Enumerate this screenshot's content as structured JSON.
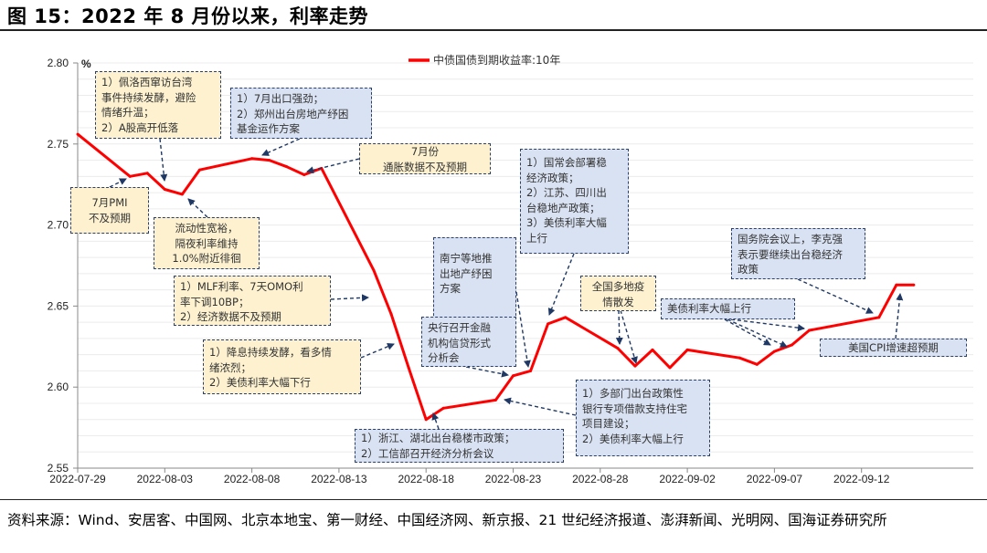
{
  "title": "图 15：2022 年 8 月份以来，利率走势",
  "source": "资料来源：Wind、安居客、中国网、北京本地宝、第一财经、中国经济网、新京报、21 世纪经济报道、澎湃新闻、光明网、国海证券研究所",
  "colors": {
    "line": "#ff0000",
    "annotation_yellow": "#fdf1cf",
    "annotation_blue": "#d9e2f2",
    "arrow": "#1f3864"
  },
  "chart_data": {
    "type": "line",
    "title": "",
    "ylabel": "%",
    "xlabel": "",
    "ylim": [
      2.55,
      2.8
    ],
    "yticks": [
      "2.55",
      "2.60",
      "2.65",
      "2.70",
      "2.75",
      "2.80"
    ],
    "xticks": [
      "2022-07-29",
      "2022-08-03",
      "2022-08-08",
      "2022-08-13",
      "2022-08-18",
      "2022-08-23",
      "2022-08-28",
      "2022-09-02",
      "2022-09-07",
      "2022-09-12"
    ],
    "grid": true,
    "legend_position": "top-center",
    "series": [
      {
        "name": "中债国债到期收益率:10年",
        "x": [
          "2022-07-29",
          "2022-08-01",
          "2022-08-02",
          "2022-08-03",
          "2022-08-04",
          "2022-08-05",
          "2022-08-08",
          "2022-08-09",
          "2022-08-10",
          "2022-08-11",
          "2022-08-12",
          "2022-08-15",
          "2022-08-16",
          "2022-08-17",
          "2022-08-18",
          "2022-08-19",
          "2022-08-22",
          "2022-08-23",
          "2022-08-24",
          "2022-08-25",
          "2022-08-26",
          "2022-08-29",
          "2022-08-30",
          "2022-08-31",
          "2022-09-01",
          "2022-09-02",
          "2022-09-05",
          "2022-09-06",
          "2022-09-07",
          "2022-09-08",
          "2022-09-09",
          "2022-09-13",
          "2022-09-14",
          "2022-09-15"
        ],
        "values": [
          2.756,
          2.73,
          2.732,
          2.722,
          2.719,
          2.734,
          2.741,
          2.74,
          2.736,
          2.731,
          2.735,
          2.672,
          2.645,
          2.612,
          2.58,
          2.587,
          2.592,
          2.607,
          2.61,
          2.639,
          2.643,
          2.624,
          2.613,
          2.623,
          2.612,
          2.623,
          2.618,
          2.614,
          2.622,
          2.626,
          2.635,
          2.643,
          2.663,
          2.663
        ]
      }
    ],
    "annotations": [
      {
        "text": "1）佩洛西窜访台湾\n事件持续发酵，避险\n情绪升温；\n2）A股高开低落",
        "style": "yellow"
      },
      {
        "text": "7月PMI\n不及预期",
        "style": "yellow"
      },
      {
        "text": "流动性宽裕，\n隔夜利率维持\n1.0%附近徘徊",
        "style": "yellow"
      },
      {
        "text": "1）7月出口强劲；\n2）郑州出台房地产纾困\n基金运作方案",
        "style": "blue"
      },
      {
        "text": "7月份\n通胀数据不及预期",
        "style": "yellow"
      },
      {
        "text": "1）MLF利率、7天OMO利\n率下调10BP；\n2）经济数据不及预期",
        "style": "yellow"
      },
      {
        "text": "1）降息持续发酵，看多情\n绪浓烈；\n2）美债利率大幅下行",
        "style": "yellow"
      },
      {
        "text": "南宁等地推\n出地产纾困\n方案",
        "style": "blue"
      },
      {
        "text": "央行召开金融\n机构信贷形式\n分析会",
        "style": "blue"
      },
      {
        "text": "1）国常会部署稳\n经济政策；\n2）江苏、四川出\n台稳地产政策；\n3）美债利率大幅\n上行",
        "style": "blue"
      },
      {
        "text": "全国多地疫\n情散发",
        "style": "yellow"
      },
      {
        "text": "美债利率大幅上行",
        "style": "blue"
      },
      {
        "text": "国务院会议上，李克强\n表示要继续出台稳经济\n政策",
        "style": "blue"
      },
      {
        "text": "美国CPI增速超预期",
        "style": "blue"
      },
      {
        "text": "1）浙江、湖北出台稳楼市政策；\n2）工信部召开经济分析会议",
        "style": "blue"
      },
      {
        "text": "1）多部门出台政策性\n银行专项借款支持住宅\n项目建设；\n2）美债利率大幅上行",
        "style": "blue"
      }
    ]
  }
}
